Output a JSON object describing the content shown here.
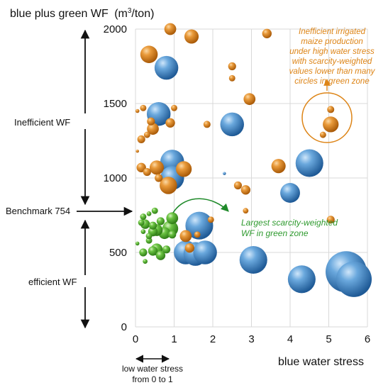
{
  "chart_data": {
    "type": "scatter",
    "title": "",
    "ylabel_main": "blue plus green WF",
    "ylabel_unit_pre": "(m",
    "ylabel_unit_sup": "3",
    "ylabel_unit_post": "/ton)",
    "xlabel": "blue water stress",
    "xlim": [
      0,
      6
    ],
    "ylim": [
      0,
      2000
    ],
    "x_ticks": [
      "0",
      "1",
      "2",
      "3",
      "4",
      "5",
      "6"
    ],
    "y_ticks": [
      "0",
      "500",
      "1000",
      "1500",
      "2000"
    ],
    "grid": true,
    "colors": {
      "blue": "#3f88c9",
      "orange": "#dd8416",
      "green": "#5bb534",
      "annotation_orange": "#dd8416",
      "annotation_green": "#2f9a2f"
    },
    "series": [
      {
        "color_key": "blue",
        "points": [
          {
            "x": 0.8,
            "y": 1740,
            "size": 3
          },
          {
            "x": 0.6,
            "y": 1430,
            "size": 3
          },
          {
            "x": 2.5,
            "y": 1360,
            "size": 3
          },
          {
            "x": 0.95,
            "y": 1110,
            "size": 3
          },
          {
            "x": 0.95,
            "y": 1000,
            "size": 3
          },
          {
            "x": 4.5,
            "y": 1100,
            "size": 3.5
          },
          {
            "x": 4.0,
            "y": 900,
            "size": 2.5
          },
          {
            "x": 1.65,
            "y": 680,
            "size": 3.5
          },
          {
            "x": 1.3,
            "y": 500,
            "size": 3
          },
          {
            "x": 1.55,
            "y": 490,
            "size": 3
          },
          {
            "x": 1.8,
            "y": 500,
            "size": 3
          },
          {
            "x": 3.05,
            "y": 450,
            "size": 3.5
          },
          {
            "x": 4.3,
            "y": 320,
            "size": 3.5
          },
          {
            "x": 5.45,
            "y": 370,
            "size": 5.2
          },
          {
            "x": 5.65,
            "y": 320,
            "size": 4.5
          },
          {
            "x": 2.3,
            "y": 1030,
            "size": 0.4
          }
        ]
      },
      {
        "color_key": "orange",
        "points": [
          {
            "x": 0.9,
            "y": 2000,
            "size": 1.5
          },
          {
            "x": 1.45,
            "y": 1950,
            "size": 1.8
          },
          {
            "x": 3.4,
            "y": 1970,
            "size": 1.2
          },
          {
            "x": 0.35,
            "y": 1830,
            "size": 2.2
          },
          {
            "x": 2.5,
            "y": 1750,
            "size": 1.0
          },
          {
            "x": 2.5,
            "y": 1670,
            "size": 0.8
          },
          {
            "x": 2.95,
            "y": 1530,
            "size": 1.5
          },
          {
            "x": 0.2,
            "y": 1470,
            "size": 0.8
          },
          {
            "x": 0.4,
            "y": 1380,
            "size": 1.0
          },
          {
            "x": 0.45,
            "y": 1330,
            "size": 1.5
          },
          {
            "x": 0.3,
            "y": 1290,
            "size": 0.8
          },
          {
            "x": 0.9,
            "y": 1370,
            "size": 1.2
          },
          {
            "x": 1.0,
            "y": 1470,
            "size": 0.8
          },
          {
            "x": 1.85,
            "y": 1360,
            "size": 0.9
          },
          {
            "x": 0.15,
            "y": 1260,
            "size": 1.0
          },
          {
            "x": 0.05,
            "y": 1450,
            "size": 0.5
          },
          {
            "x": 5.05,
            "y": 1460,
            "size": 0.9
          },
          {
            "x": 5.05,
            "y": 1360,
            "size": 2.0
          },
          {
            "x": 4.85,
            "y": 1290,
            "size": 0.8
          },
          {
            "x": 3.7,
            "y": 1080,
            "size": 1.8
          },
          {
            "x": 0.15,
            "y": 1070,
            "size": 1.2
          },
          {
            "x": 0.3,
            "y": 1040,
            "size": 1.0
          },
          {
            "x": 0.55,
            "y": 1070,
            "size": 1.8
          },
          {
            "x": 0.6,
            "y": 1000,
            "size": 1.0
          },
          {
            "x": 1.25,
            "y": 1060,
            "size": 2.0
          },
          {
            "x": 0.85,
            "y": 950,
            "size": 2.2
          },
          {
            "x": 2.65,
            "y": 950,
            "size": 1.0
          },
          {
            "x": 2.85,
            "y": 920,
            "size": 1.2
          },
          {
            "x": 2.85,
            "y": 780,
            "size": 0.7
          },
          {
            "x": 1.95,
            "y": 720,
            "size": 0.8
          },
          {
            "x": 1.3,
            "y": 610,
            "size": 1.5
          },
          {
            "x": 1.4,
            "y": 530,
            "size": 1.2
          },
          {
            "x": 1.6,
            "y": 620,
            "size": 0.8
          },
          {
            "x": 5.05,
            "y": 720,
            "size": 1.0
          },
          {
            "x": 0.05,
            "y": 1180,
            "size": 0.4
          }
        ]
      },
      {
        "color_key": "green",
        "points": [
          {
            "x": 0.2,
            "y": 740,
            "size": 0.8
          },
          {
            "x": 0.35,
            "y": 760,
            "size": 0.6
          },
          {
            "x": 0.5,
            "y": 780,
            "size": 0.8
          },
          {
            "x": 0.65,
            "y": 710,
            "size": 1.0
          },
          {
            "x": 0.25,
            "y": 690,
            "size": 1.2
          },
          {
            "x": 0.45,
            "y": 680,
            "size": 1.0
          },
          {
            "x": 0.9,
            "y": 660,
            "size": 2.0
          },
          {
            "x": 0.95,
            "y": 730,
            "size": 1.5
          },
          {
            "x": 0.75,
            "y": 630,
            "size": 1.5
          },
          {
            "x": 0.55,
            "y": 650,
            "size": 1.5
          },
          {
            "x": 0.45,
            "y": 640,
            "size": 1.2
          },
          {
            "x": 0.35,
            "y": 580,
            "size": 0.8
          },
          {
            "x": 0.2,
            "y": 640,
            "size": 0.6
          },
          {
            "x": 0.55,
            "y": 520,
            "size": 1.5
          },
          {
            "x": 0.45,
            "y": 510,
            "size": 1.2
          },
          {
            "x": 0.2,
            "y": 500,
            "size": 1.0
          },
          {
            "x": 0.65,
            "y": 480,
            "size": 1.2
          },
          {
            "x": 0.8,
            "y": 520,
            "size": 1.0
          },
          {
            "x": 0.25,
            "y": 440,
            "size": 0.6
          },
          {
            "x": 0.95,
            "y": 620,
            "size": 1.0
          },
          {
            "x": 0.05,
            "y": 560,
            "size": 0.5
          },
          {
            "x": 0.15,
            "y": 700,
            "size": 0.8
          },
          {
            "x": 0.35,
            "y": 610,
            "size": 0.8
          }
        ]
      }
    ]
  },
  "annotations": {
    "inefficient_label": "Inefficient WF",
    "benchmark_label": "Benchmark 754",
    "benchmark_value": 754,
    "efficient_label": "efficient WF",
    "low_stress_line1": "low water stress",
    "low_stress_line2": "from 0 to 1",
    "green_note_line1": "Largest scarcity-weighted",
    "green_note_line2": "WF in green zone",
    "orange_note_lines": [
      "Inefficient irrigated",
      "maize production",
      "under high water stress",
      "with scarcity-weighted",
      "values lower than many",
      "circles in green zone"
    ]
  }
}
